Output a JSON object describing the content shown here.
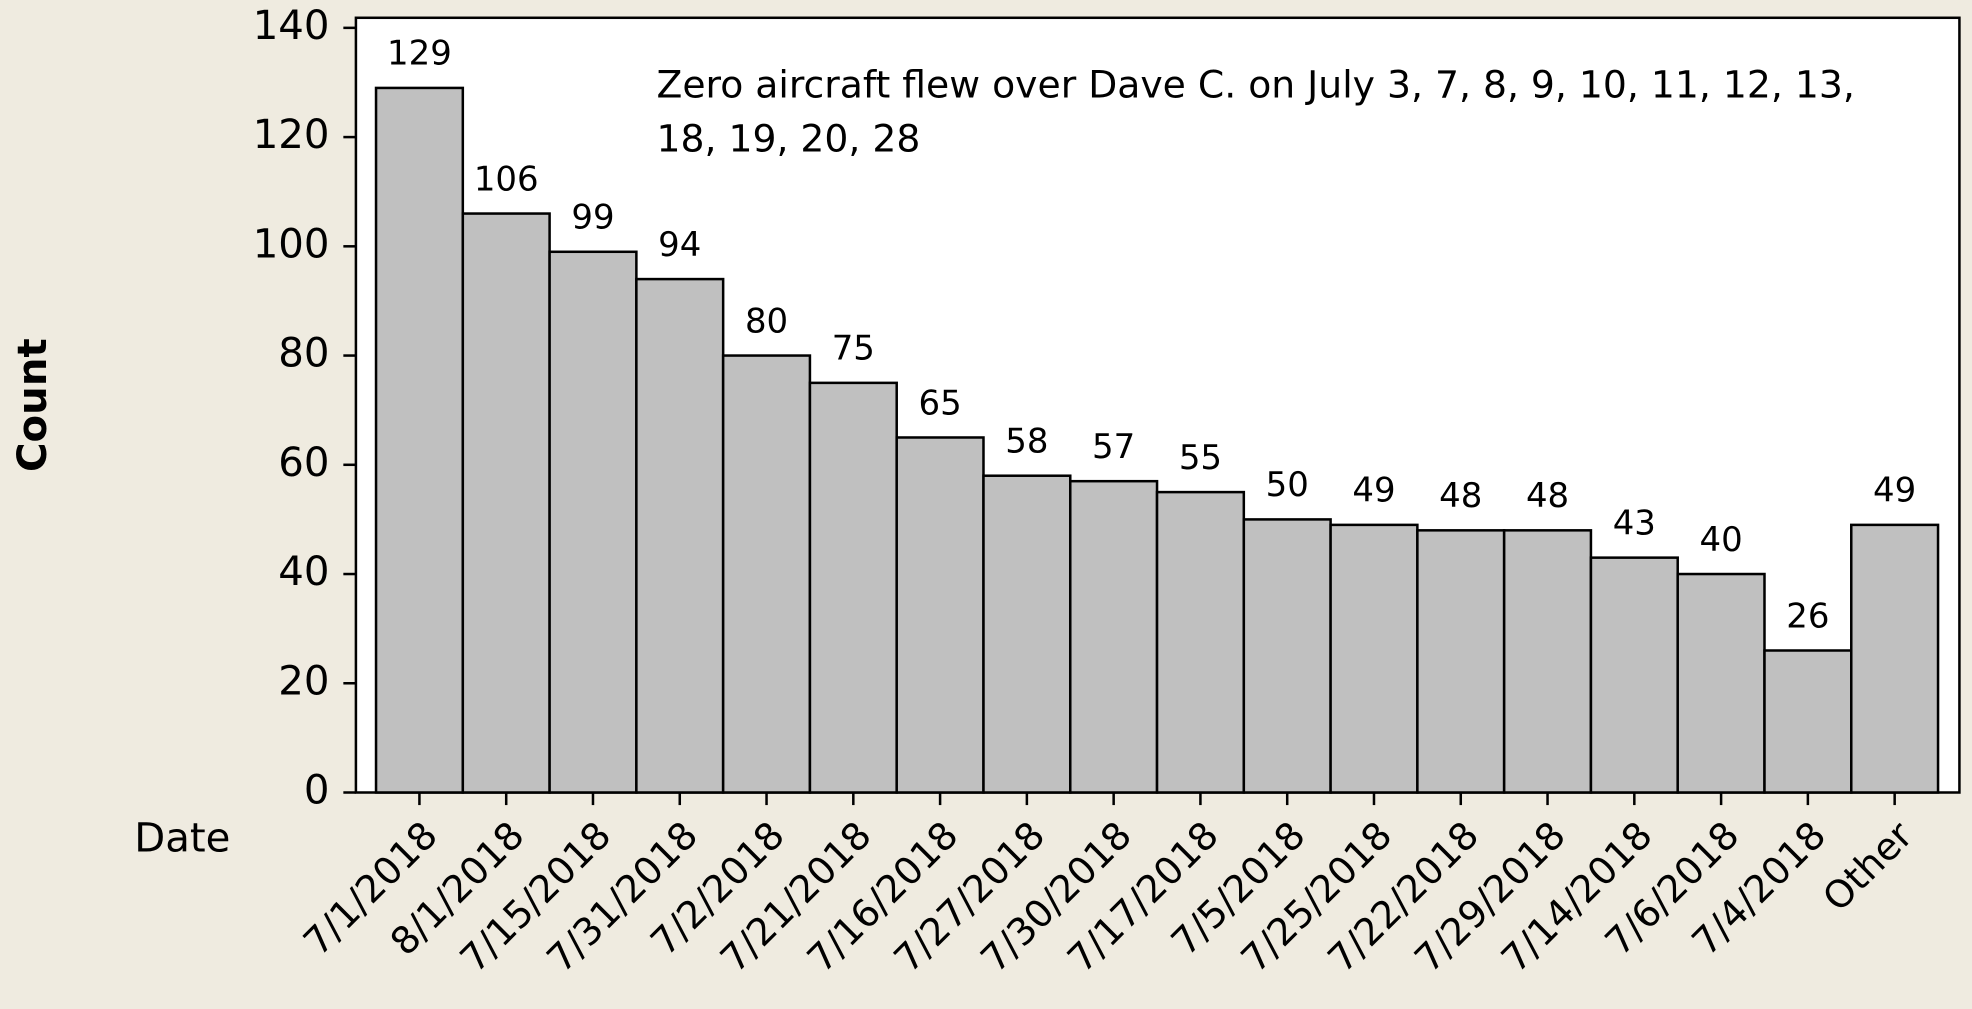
{
  "chart_data": {
    "type": "bar",
    "y_label": "Count",
    "x_label": "Date",
    "annotation": [
      "Zero aircraft flew over Dave C. on July 3, 7, 8, 9, 10, 11, 12, 13,",
      "18, 19, 20, 28"
    ],
    "categories": [
      "7/1/2018",
      "8/1/2018",
      "7/15/2018",
      "7/31/2018",
      "7/2/2018",
      "7/21/2018",
      "7/16/2018",
      "7/27/2018",
      "7/30/2018",
      "7/17/2018",
      "7/5/2018",
      "7/25/2018",
      "7/22/2018",
      "7/29/2018",
      "7/14/2018",
      "7/6/2018",
      "7/4/2018",
      "Other"
    ],
    "values": [
      129,
      106,
      99,
      94,
      80,
      75,
      65,
      58,
      57,
      55,
      50,
      49,
      48,
      48,
      43,
      40,
      26,
      49
    ],
    "color": "#c0c0c0",
    "ylim": [
      0,
      140
    ],
    "yticks": [
      0,
      20,
      40,
      60,
      80,
      100,
      120,
      140
    ]
  }
}
